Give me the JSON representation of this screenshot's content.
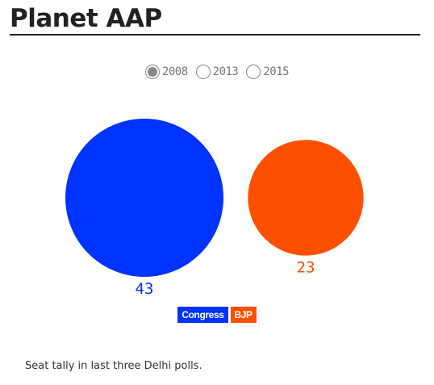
{
  "title": "Planet AAP",
  "years": [
    {
      "label": "2008",
      "selected": true
    },
    {
      "label": "2013",
      "selected": false
    },
    {
      "label": "2015",
      "selected": false
    }
  ],
  "caption": "Seat tally in last three Delhi polls.",
  "colors": {
    "congress": "#0033ff",
    "bjp": "#fc5000"
  },
  "chart_data": {
    "type": "bubble",
    "year": "2008",
    "parties": [
      {
        "name": "Congress",
        "seats": 43,
        "color": "#0033ff"
      },
      {
        "name": "BJP",
        "seats": 23,
        "color": "#fc5000"
      }
    ]
  }
}
